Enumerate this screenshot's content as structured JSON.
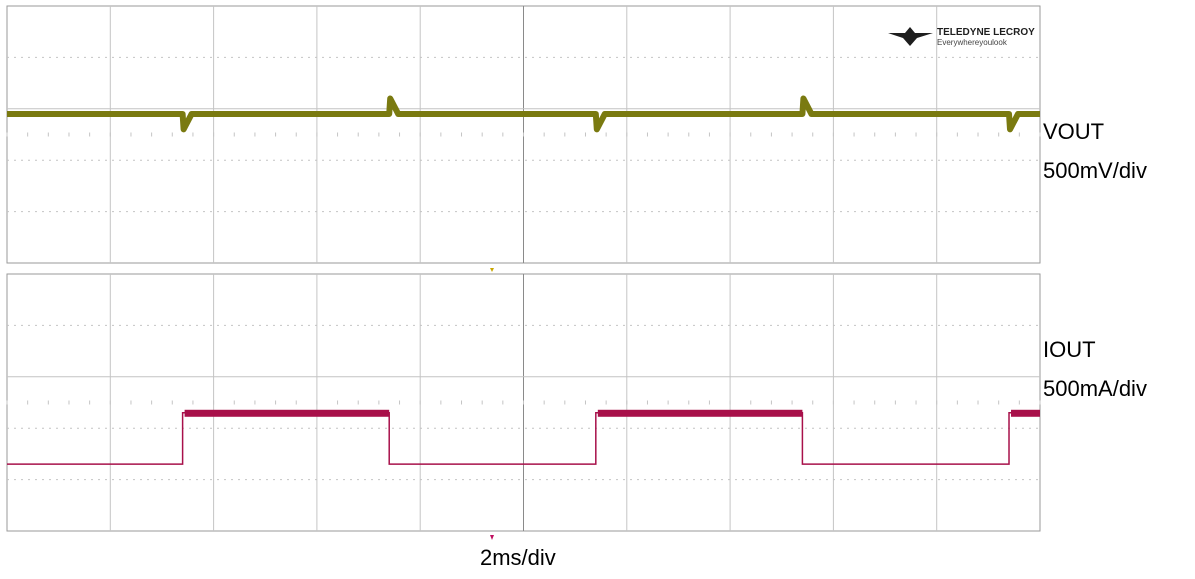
{
  "logo": {
    "brand": "TELEDYNE LECROY",
    "tagline": "Everywhereyoulook"
  },
  "channels": {
    "vout": {
      "name": "VOUT",
      "scale": "500mV/div",
      "color": "#7a7a10"
    },
    "iout": {
      "name": "IOUT",
      "scale": "500mA/div",
      "color": "#a8104a"
    }
  },
  "timebase": "2ms/div",
  "chart_data": [
    {
      "type": "line",
      "title": "",
      "xlabel": "2ms/div",
      "ylabel": "VOUT 500mV/div",
      "xlim": [
        0,
        20
      ],
      "units": "x in ms, y in divisions (5 div = 2.5 V full panel height)",
      "grid": true,
      "events": [
        {
          "t": 3.4,
          "type": "undershoot",
          "depth_div": -0.3
        },
        {
          "t": 7.4,
          "type": "overshoot",
          "height_div": 0.3
        },
        {
          "t": 11.4,
          "type": "undershoot",
          "depth_div": -0.3
        },
        {
          "t": 15.4,
          "type": "overshoot",
          "height_div": 0.3
        },
        {
          "t": 19.4,
          "type": "undershoot",
          "depth_div": -0.3
        }
      ],
      "nominal_level_div": 2.9
    },
    {
      "type": "line",
      "title": "",
      "xlabel": "2ms/div",
      "ylabel": "IOUT 500mA/div",
      "xlim": [
        0,
        20
      ],
      "grid": true,
      "levels_div": {
        "low": 1.3,
        "high": 2.3
      },
      "steps": [
        {
          "t": 3.4,
          "to": "high"
        },
        {
          "t": 7.4,
          "to": "low"
        },
        {
          "t": 11.4,
          "to": "high"
        },
        {
          "t": 15.4,
          "to": "low"
        },
        {
          "t": 19.4,
          "to": "high"
        }
      ]
    }
  ]
}
